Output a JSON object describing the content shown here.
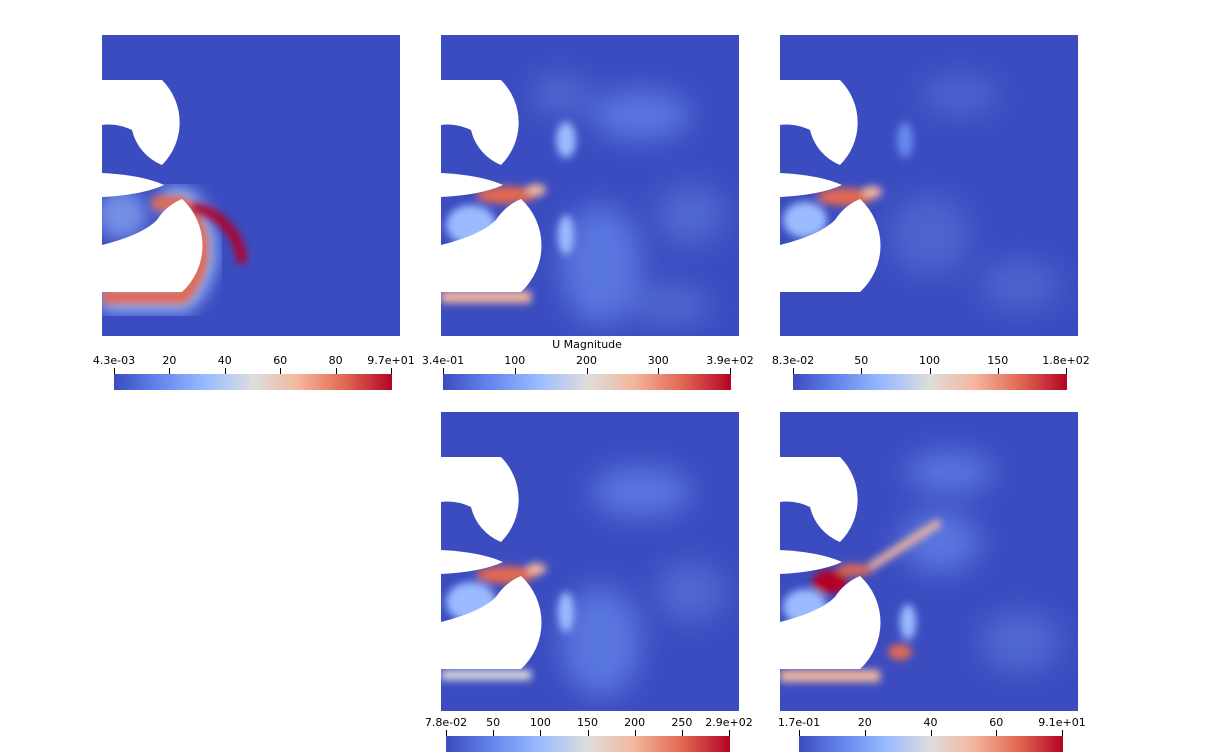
{
  "panels": [
    {
      "id": "p1",
      "colorbar": {
        "title": "",
        "ticks": [
          "4.3e-03",
          "20",
          "40",
          "60",
          "80",
          "9.7e+01"
        ]
      }
    },
    {
      "id": "p2",
      "colorbar": {
        "title": "U Magnitude",
        "ticks": [
          "3.4e-01",
          "100",
          "200",
          "300",
          "3.9e+02"
        ]
      }
    },
    {
      "id": "p3",
      "colorbar": {
        "title": "",
        "ticks": [
          "8.3e-02",
          "50",
          "100",
          "150",
          "1.8e+02"
        ]
      }
    },
    {
      "id": "p4",
      "colorbar": {
        "title": "",
        "ticks": [
          "7.8e-02",
          "50",
          "100",
          "150",
          "200",
          "250",
          "2.9e+02"
        ]
      }
    },
    {
      "id": "p5",
      "colorbar": {
        "title": "",
        "ticks": [
          "1.7e-01",
          "20",
          "40",
          "60",
          "9.1e+01"
        ]
      }
    }
  ],
  "colormap": [
    "#3b4cc0",
    "#6788ee",
    "#9abbff",
    "#dddddd",
    "#f4b79e",
    "#e16852",
    "#b40426"
  ]
}
